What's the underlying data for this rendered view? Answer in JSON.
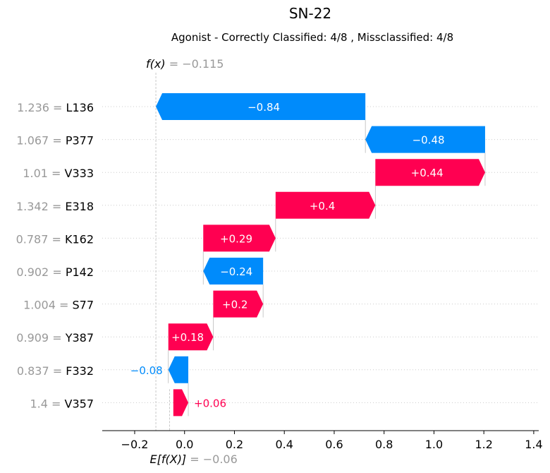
{
  "chart_data": {
    "type": "waterfall",
    "title": "SN-22",
    "subtitle": "Agonist - Correctly Classified: 4/8 , Missclassified: 4/8",
    "fx_label": "f(x)",
    "fx_value": "= −0.115",
    "efx_label": "E[f(X)]",
    "efx_value": "= −0.06",
    "fx": -0.115,
    "base": -0.06,
    "xlim": [
      -0.33,
      1.42
    ],
    "xticks": [
      -0.2,
      0.0,
      0.2,
      0.4,
      0.6,
      0.8,
      1.0,
      1.2,
      1.4
    ],
    "xtick_labels": [
      "−0.2",
      "0.0",
      "0.2",
      "0.4",
      "0.6",
      "0.8",
      "1.0",
      "1.2",
      "1.4"
    ],
    "colors": {
      "positive": "#ff0051",
      "negative": "#008bfb",
      "muted": "#999999",
      "text": "#000000"
    },
    "features": [
      {
        "value": "1.236 =",
        "name": "L136",
        "shap": -0.84,
        "label": "−0.84"
      },
      {
        "value": "1.067 =",
        "name": "P377",
        "shap": -0.48,
        "label": "−0.48"
      },
      {
        "value": "1.01 =",
        "name": "V333",
        "shap": 0.44,
        "label": "+0.44"
      },
      {
        "value": "1.342 =",
        "name": "E318",
        "shap": 0.4,
        "label": "+0.4"
      },
      {
        "value": "0.787 =",
        "name": "K162",
        "shap": 0.29,
        "label": "+0.29"
      },
      {
        "value": "0.902 =",
        "name": "P142",
        "shap": -0.24,
        "label": "−0.24"
      },
      {
        "value": "1.004 =",
        "name": "S77",
        "shap": 0.2,
        "label": "+0.2"
      },
      {
        "value": "0.909 =",
        "name": "Y387",
        "shap": 0.18,
        "label": "+0.18"
      },
      {
        "value": "0.837 =",
        "name": "F332",
        "shap": -0.08,
        "label": "−0.08"
      },
      {
        "value": "1.4 =",
        "name": "V357",
        "shap": 0.06,
        "label": "+0.06"
      }
    ]
  }
}
